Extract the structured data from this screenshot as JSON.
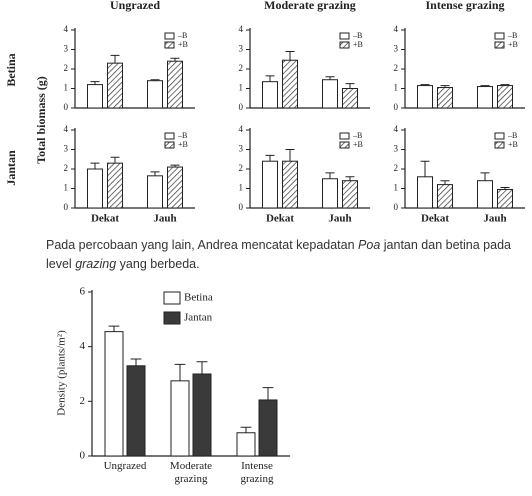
{
  "figure_1": {
    "y_label": "Total biomass (g)",
    "row_labels": [
      "Betina",
      "Jantan"
    ]
  },
  "chart_data": [
    {
      "type": "bar",
      "title": "Ungrazed",
      "categories": [
        null,
        null
      ],
      "ylim": [
        0,
        4
      ],
      "yticks": [
        0,
        1,
        2,
        3,
        4
      ],
      "series": [
        {
          "name": "–B",
          "color": "#ffffff",
          "values": [
            1.2,
            1.4
          ],
          "errors": [
            0.15,
            0.05
          ]
        },
        {
          "name": "+B",
          "color": "#ffffff",
          "pattern": "hatch",
          "values": [
            2.3,
            2.4
          ],
          "errors": [
            0.4,
            0.15
          ]
        }
      ]
    },
    {
      "type": "bar",
      "title": "Moderate grazing",
      "categories": [
        null,
        null
      ],
      "ylim": [
        0,
        4
      ],
      "yticks": [
        0,
        1,
        2,
        3,
        4
      ],
      "series": [
        {
          "name": "–B",
          "color": "#ffffff",
          "values": [
            1.35,
            1.45
          ],
          "errors": [
            0.3,
            0.15
          ]
        },
        {
          "name": "+B",
          "color": "#ffffff",
          "pattern": "hatch",
          "values": [
            2.45,
            1.0
          ],
          "errors": [
            0.45,
            0.25
          ]
        }
      ]
    },
    {
      "type": "bar",
      "title": "Intense grazing",
      "categories": [
        null,
        null
      ],
      "ylim": [
        0,
        4
      ],
      "yticks": [
        0,
        1,
        2,
        3,
        4
      ],
      "series": [
        {
          "name": "–B",
          "color": "#ffffff",
          "values": [
            1.15,
            1.1
          ],
          "errors": [
            0.05,
            0.05
          ]
        },
        {
          "name": "+B",
          "color": "#ffffff",
          "pattern": "hatch",
          "values": [
            1.05,
            1.15
          ],
          "errors": [
            0.1,
            0.05
          ]
        }
      ]
    },
    {
      "type": "bar",
      "categories": [
        "Dekat",
        "Jauh"
      ],
      "ylim": [
        0,
        4
      ],
      "yticks": [
        0,
        1,
        2,
        3,
        4
      ],
      "series": [
        {
          "name": "–B",
          "color": "#ffffff",
          "values": [
            2.0,
            1.65
          ],
          "errors": [
            0.3,
            0.2
          ]
        },
        {
          "name": "+B",
          "color": "#ffffff",
          "pattern": "hatch",
          "values": [
            2.3,
            2.1
          ],
          "errors": [
            0.3,
            0.1
          ]
        }
      ]
    },
    {
      "type": "bar",
      "categories": [
        "Dekat",
        "Jauh"
      ],
      "ylim": [
        0,
        4
      ],
      "yticks": [
        0,
        1,
        2,
        3,
        4
      ],
      "series": [
        {
          "name": "–B",
          "color": "#ffffff",
          "values": [
            2.4,
            1.5
          ],
          "errors": [
            0.3,
            0.3
          ]
        },
        {
          "name": "+B",
          "color": "#ffffff",
          "pattern": "hatch",
          "values": [
            2.4,
            1.4
          ],
          "errors": [
            0.6,
            0.2
          ]
        }
      ]
    },
    {
      "type": "bar",
      "categories": [
        "Dekat",
        "Jauh"
      ],
      "ylim": [
        0,
        4
      ],
      "yticks": [
        0,
        1,
        2,
        3,
        4
      ],
      "series": [
        {
          "name": "–B",
          "color": "#ffffff",
          "values": [
            1.6,
            1.4
          ],
          "errors": [
            0.8,
            0.4
          ]
        },
        {
          "name": "+B",
          "color": "#ffffff",
          "pattern": "hatch",
          "values": [
            1.2,
            0.95
          ],
          "errors": [
            0.2,
            0.1
          ]
        }
      ]
    },
    {
      "type": "bar",
      "y_label": "Density (plants/m²)",
      "categories": [
        "Ungrazed",
        "Moderate grazing",
        "Intense grazing"
      ],
      "ylim": [
        0,
        6
      ],
      "yticks": [
        0,
        2,
        4,
        6
      ],
      "series": [
        {
          "name": "Betina",
          "color": "#ffffff",
          "values": [
            4.55,
            2.75,
            0.85
          ],
          "errors": [
            0.2,
            0.6,
            0.2
          ]
        },
        {
          "name": "Jantan",
          "color": "#3a3a3a",
          "values": [
            3.3,
            3.0,
            2.05
          ],
          "errors": [
            0.25,
            0.45,
            0.45
          ]
        }
      ]
    }
  ],
  "paragraph": [
    "Pada percobaan yang lain, Andrea mencatat kepadatan ",
    "Poa",
    " jantan dan betina pada level ",
    "grazing",
    " yang berbeda."
  ]
}
